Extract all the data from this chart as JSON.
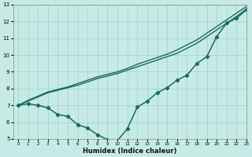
{
  "xlabel": "Humidex (Indice chaleur)",
  "ylabel": "",
  "background_color": "#c6ebe6",
  "grid_color": "#aad4ce",
  "line_color": "#1a6b5a",
  "xlim": [
    -0.5,
    23
  ],
  "ylim": [
    5,
    13
  ],
  "xticks": [
    0,
    1,
    2,
    3,
    4,
    5,
    6,
    7,
    8,
    9,
    10,
    11,
    12,
    13,
    14,
    15,
    16,
    17,
    18,
    19,
    20,
    21,
    22,
    23
  ],
  "yticks": [
    5,
    6,
    7,
    8,
    9,
    10,
    11,
    12,
    13
  ],
  "series": [
    {
      "x": [
        0,
        1,
        2,
        3,
        4,
        5,
        6,
        7,
        8,
        9,
        10,
        11,
        12,
        13,
        14,
        15,
        16,
        17,
        18,
        19,
        20,
        21,
        22,
        23
      ],
      "y": [
        7.0,
        7.25,
        7.5,
        7.75,
        7.9,
        8.05,
        8.2,
        8.4,
        8.6,
        8.75,
        8.9,
        9.1,
        9.3,
        9.5,
        9.7,
        9.9,
        10.1,
        10.4,
        10.7,
        11.1,
        11.5,
        11.9,
        12.3,
        12.75
      ],
      "marker": null,
      "markersize": 0,
      "linewidth": 1.0
    },
    {
      "x": [
        0,
        1,
        2,
        3,
        4,
        5,
        6,
        7,
        8,
        9,
        10,
        11,
        12,
        13,
        14,
        15,
        16,
        17,
        18,
        19,
        20,
        21,
        22,
        23
      ],
      "y": [
        7.0,
        7.3,
        7.55,
        7.8,
        7.95,
        8.1,
        8.3,
        8.5,
        8.7,
        8.85,
        9.0,
        9.2,
        9.45,
        9.65,
        9.85,
        10.05,
        10.3,
        10.6,
        10.9,
        11.3,
        11.7,
        12.1,
        12.5,
        12.9
      ],
      "marker": null,
      "markersize": 0,
      "linewidth": 1.0
    },
    {
      "x": [
        0,
        1,
        2,
        3,
        4,
        5,
        6,
        7,
        8,
        9,
        10,
        11,
        12,
        13,
        14,
        15,
        16,
        17,
        18,
        19,
        20,
        21,
        22,
        23
      ],
      "y": [
        7.0,
        7.1,
        7.0,
        6.85,
        6.45,
        6.35,
        5.85,
        5.65,
        5.25,
        4.95,
        4.9,
        5.6,
        6.9,
        7.25,
        7.75,
        8.05,
        8.5,
        8.8,
        9.5,
        9.9,
        11.1,
        11.9,
        12.2,
        12.7
      ],
      "marker": "D",
      "markersize": 2.2,
      "linewidth": 1.1
    }
  ]
}
